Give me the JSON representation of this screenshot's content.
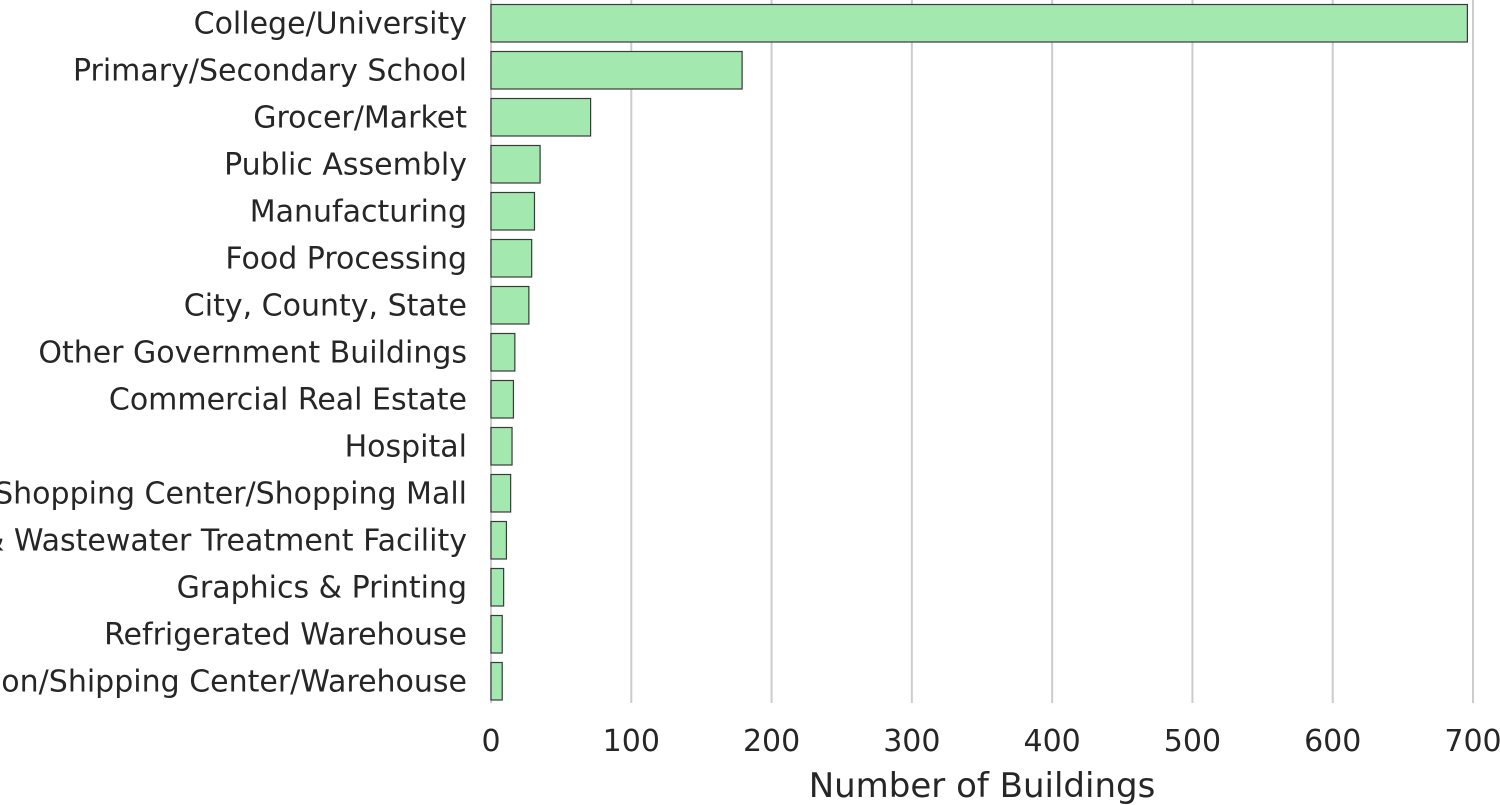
{
  "chart_data": {
    "type": "bar",
    "orientation": "horizontal",
    "title": "",
    "xlabel": "Number of Buildings",
    "ylabel": "",
    "categories": [
      "College/University",
      "Primary/Secondary School",
      "Grocer/Market",
      "Public Assembly",
      "Manufacturing",
      "Food Processing",
      "City, County, State",
      "Other Government Buildings",
      "Commercial Real Estate",
      "Hospital",
      "Shopping Center/Shopping Mall",
      "Water & Wastewater Treatment Facility",
      "Graphics & Printing",
      "Refrigerated Warehouse",
      "Distribution/Shipping Center/Warehouse"
    ],
    "values": [
      696,
      179,
      71,
      35,
      31,
      29,
      27,
      17,
      16,
      15,
      14,
      11,
      9,
      8,
      8
    ],
    "xlim": [
      0,
      700
    ],
    "xticks": [
      "0",
      "100",
      "200",
      "300",
      "400",
      "500",
      "600",
      "700"
    ],
    "grid": "vertical",
    "bar_color": "#a2e8af",
    "bar_edge_color": "#3a3a3a",
    "grid_color": "#cccccc",
    "text_color": "#262626"
  }
}
